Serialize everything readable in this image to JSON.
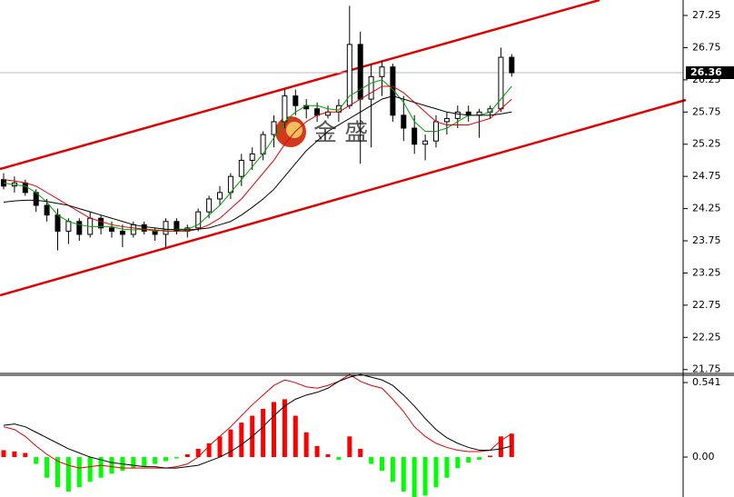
{
  "chart_data": [
    {
      "type": "candlestick",
      "watermark": "金 盛",
      "ylim": [
        21.69,
        27.49
      ],
      "yticks": [
        27.25,
        26.75,
        {
          "value": 26.25,
          "label": "26.25"
        },
        25.75,
        25.25,
        24.75,
        24.25,
        23.75,
        23.25,
        22.75,
        22.25,
        21.75
      ],
      "up_color": "#ffffff",
      "down_color": "#000000",
      "open": [
        24.7,
        24.6,
        24.65,
        24.5,
        24.3,
        24.15,
        23.9,
        24.05,
        23.85,
        24.1,
        23.95,
        23.9,
        23.85,
        24.0,
        23.9,
        23.85,
        24.05,
        23.9,
        23.95,
        24.2,
        24.4,
        24.5,
        24.75,
        25.0,
        25.1,
        25.4,
        25.6,
        26.0,
        25.85,
        25.8,
        25.7,
        25.75,
        25.85,
        26.8,
        25.95,
        26.3,
        26.45,
        25.7,
        25.5,
        25.25,
        25.3,
        25.6,
        25.65,
        25.75,
        25.7,
        25.75,
        25.8,
        26.6
      ],
      "high": [
        24.8,
        24.75,
        24.7,
        24.55,
        24.4,
        24.25,
        24.1,
        24.1,
        24.2,
        24.15,
        24.05,
        24.0,
        24.05,
        24.05,
        23.95,
        24.1,
        24.1,
        24.0,
        24.25,
        24.45,
        24.6,
        24.8,
        25.1,
        25.2,
        25.45,
        25.7,
        26.1,
        26.1,
        25.95,
        25.9,
        25.85,
        25.95,
        27.4,
        27.0,
        26.5,
        26.55,
        26.5,
        26.0,
        25.7,
        25.4,
        25.7,
        25.75,
        25.85,
        25.85,
        25.8,
        25.85,
        26.75,
        26.65
      ],
      "low": [
        24.55,
        24.5,
        24.45,
        24.2,
        24.05,
        23.6,
        23.7,
        23.75,
        23.8,
        23.85,
        23.8,
        23.65,
        23.8,
        23.85,
        23.75,
        23.65,
        23.85,
        23.8,
        23.9,
        24.1,
        24.3,
        24.4,
        24.6,
        24.85,
        25.0,
        25.2,
        25.5,
        25.7,
        25.65,
        25.6,
        25.65,
        25.6,
        25.8,
        24.95,
        25.2,
        26.0,
        25.6,
        25.3,
        25.1,
        25.0,
        25.2,
        25.4,
        25.5,
        25.6,
        25.35,
        25.65,
        25.75,
        26.3
      ],
      "close": [
        24.6,
        24.65,
        24.5,
        24.3,
        24.15,
        23.9,
        24.05,
        23.85,
        24.1,
        23.95,
        23.9,
        23.85,
        24.0,
        23.9,
        23.85,
        24.05,
        23.9,
        23.95,
        24.2,
        24.4,
        24.5,
        24.75,
        25.0,
        25.1,
        25.4,
        25.6,
        26.0,
        25.85,
        25.8,
        25.7,
        25.75,
        25.85,
        26.8,
        25.95,
        26.3,
        26.45,
        25.7,
        25.5,
        25.25,
        25.3,
        25.6,
        25.65,
        25.75,
        25.7,
        25.75,
        25.8,
        26.6,
        26.36
      ],
      "series": [
        {
          "color": "#00a000",
          "values": [
            24.65,
            24.62,
            24.6,
            24.5,
            24.35,
            24.15,
            24.05,
            24.0,
            23.97,
            23.97,
            23.97,
            23.93,
            23.92,
            23.93,
            23.9,
            23.92,
            23.93,
            23.93,
            24.0,
            24.15,
            24.3,
            24.5,
            24.7,
            24.9,
            25.1,
            25.35,
            25.6,
            25.75,
            25.85,
            25.85,
            25.8,
            25.78,
            26.0,
            26.1,
            26.2,
            26.25,
            26.1,
            25.9,
            25.6,
            25.45,
            25.45,
            25.5,
            25.6,
            25.7,
            25.7,
            25.75,
            25.95,
            26.15
          ]
        },
        {
          "color": "#e00000",
          "values": [
            24.7,
            24.68,
            24.65,
            24.6,
            24.5,
            24.4,
            24.3,
            24.2,
            24.1,
            24.05,
            24.0,
            23.97,
            23.95,
            23.93,
            23.92,
            23.9,
            23.9,
            23.9,
            23.93,
            24.0,
            24.1,
            24.25,
            24.4,
            24.6,
            24.8,
            25.0,
            25.25,
            25.45,
            25.6,
            25.7,
            25.75,
            25.75,
            25.85,
            25.95,
            26.05,
            26.15,
            26.15,
            26.05,
            25.9,
            25.75,
            25.6,
            25.55,
            25.55,
            25.55,
            25.6,
            25.65,
            25.8,
            25.95
          ]
        },
        {
          "color": "#000000",
          "values": [
            24.35,
            24.37,
            24.38,
            24.38,
            24.36,
            24.33,
            24.3,
            24.25,
            24.2,
            24.15,
            24.1,
            24.05,
            24.0,
            23.97,
            23.95,
            23.93,
            23.92,
            23.92,
            23.93,
            23.95,
            24.0,
            24.05,
            24.15,
            24.27,
            24.4,
            24.55,
            24.75,
            24.95,
            25.15,
            25.3,
            25.45,
            25.55,
            25.65,
            25.75,
            25.85,
            25.95,
            26.0,
            25.95,
            25.9,
            25.85,
            25.8,
            25.75,
            25.72,
            25.7,
            25.7,
            25.7,
            25.72,
            25.75
          ]
        }
      ]
    },
    {
      "type": "macd",
      "ylim": [
        -0.29,
        0.594
      ],
      "yticks": [
        0.541,
        {
          "value": 0,
          "label": "0.00"
        }
      ],
      "pos_color": "#ff0000",
      "neg_color": "#00ff00",
      "histogram": [
        0.05,
        0.04,
        0.03,
        -0.05,
        -0.15,
        -0.22,
        -0.25,
        -0.22,
        -0.18,
        -0.15,
        -0.12,
        -0.1,
        -0.08,
        -0.07,
        -0.05,
        -0.03,
        -0.01,
        0.02,
        0.06,
        0.1,
        0.15,
        0.2,
        0.25,
        0.3,
        0.35,
        0.4,
        0.42,
        0.3,
        0.18,
        0.08,
        0.02,
        -0.02,
        0.15,
        0.06,
        -0.05,
        -0.1,
        -0.18,
        -0.25,
        -0.29,
        -0.28,
        -0.22,
        -0.15,
        -0.08,
        -0.04,
        -0.02,
        0.01,
        0.15,
        0.17
      ],
      "series": [
        {
          "color": "#e00000",
          "values": [
            0.22,
            0.2,
            0.15,
            0.08,
            0.02,
            -0.03,
            -0.06,
            -0.08,
            -0.07,
            -0.06,
            -0.07,
            -0.08,
            -0.08,
            -0.08,
            -0.08,
            -0.08,
            -0.07,
            -0.05,
            0.0,
            0.08,
            0.15,
            0.22,
            0.3,
            0.38,
            0.45,
            0.52,
            0.56,
            0.54,
            0.51,
            0.5,
            0.52,
            0.55,
            0.6,
            0.55,
            0.52,
            0.5,
            0.42,
            0.33,
            0.22,
            0.15,
            0.1,
            0.07,
            0.05,
            0.04,
            0.04,
            0.05,
            0.12,
            0.17
          ]
        },
        {
          "color": "#000000",
          "values": [
            0.23,
            0.24,
            0.22,
            0.18,
            0.14,
            0.1,
            0.06,
            0.03,
            0.0,
            -0.02,
            -0.04,
            -0.05,
            -0.06,
            -0.07,
            -0.07,
            -0.08,
            -0.08,
            -0.07,
            -0.06,
            -0.03,
            0.0,
            0.04,
            0.09,
            0.15,
            0.22,
            0.3,
            0.37,
            0.42,
            0.45,
            0.47,
            0.5,
            0.55,
            0.58,
            0.6,
            0.58,
            0.56,
            0.52,
            0.45,
            0.37,
            0.28,
            0.2,
            0.14,
            0.1,
            0.07,
            0.05,
            0.05,
            0.06,
            0.08
          ]
        }
      ]
    }
  ]
}
